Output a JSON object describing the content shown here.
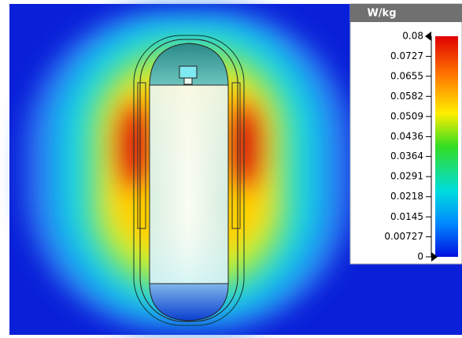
{
  "colorbar": {
    "title": "W/kg",
    "range": [
      0,
      0.08
    ],
    "ticks": [
      0.08,
      0.0727,
      0.0655,
      0.0582,
      0.0509,
      0.0436,
      0.0364,
      0.0291,
      0.0218,
      0.0145,
      0.00727,
      0
    ]
  }
}
